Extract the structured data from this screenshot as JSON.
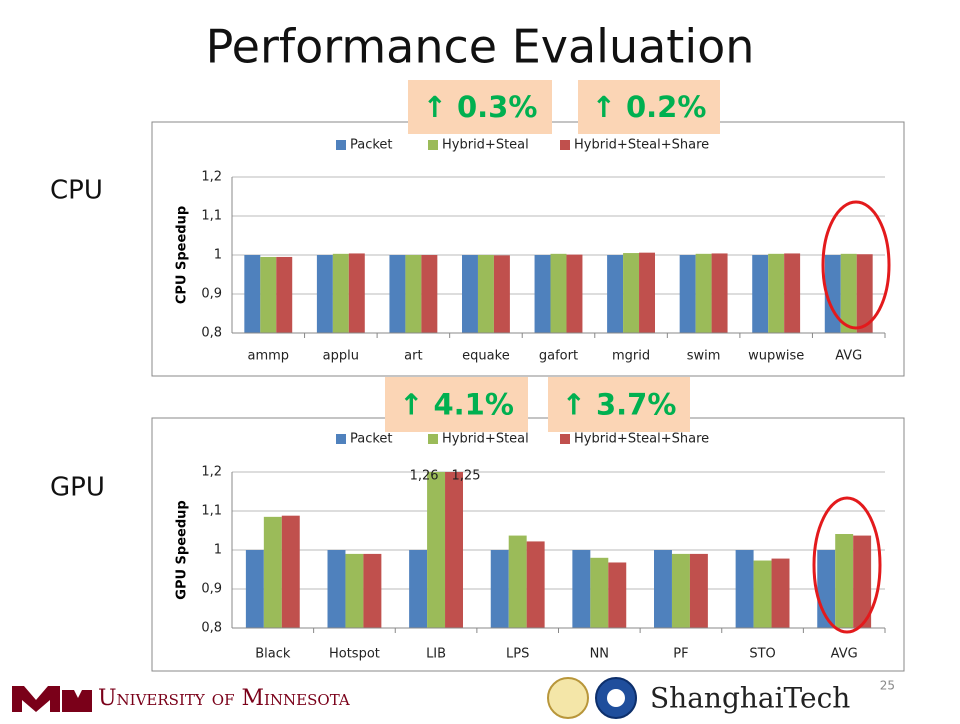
{
  "title": "Performance Evaluation",
  "footer": {
    "university": "University of Minnesota",
    "partner": "ShanghaiTech",
    "page": "25"
  },
  "chart_data": [
    {
      "type": "bar",
      "section": "CPU",
      "ylabel": "CPU Speedup",
      "annotations": [
        "↑ 0.3%",
        "↑ 0.2%"
      ],
      "categories": [
        "ammp",
        "applu",
        "art",
        "equake",
        "gafort",
        "mgrid",
        "swim",
        "wupwise",
        "AVG"
      ],
      "series": [
        {
          "name": "Packet",
          "color": "#4f81bd",
          "values": [
            1,
            1,
            1,
            1,
            1,
            1,
            1,
            1,
            1
          ]
        },
        {
          "name": "Hybrid+Steal",
          "color": "#9bbb59",
          "values": [
            0.995,
            1.003,
            1.0,
            1.0,
            1.003,
            1.005,
            1.003,
            1.003,
            1.003
          ]
        },
        {
          "name": "Hybrid+Steal+Share",
          "color": "#c0504d",
          "values": [
            0.995,
            1.004,
            1.0,
            0.999,
            1.001,
            1.006,
            1.004,
            1.004,
            1.002
          ]
        }
      ],
      "ylim": [
        0.8,
        1.2
      ],
      "yticks": [
        {
          "value": 0.8,
          "label": "0,8"
        },
        {
          "value": 0.9,
          "label": "0,9"
        },
        1,
        {
          "value": 1.1,
          "label": "1,1"
        },
        {
          "value": 1.2,
          "label": "1,2"
        }
      ],
      "grid": true,
      "legend": "top"
    },
    {
      "type": "bar",
      "section": "GPU",
      "ylabel": "GPU Speedup",
      "annotations": [
        "↑ 4.1%",
        "↑ 3.7%"
      ],
      "categories": [
        "Black",
        "Hotspot",
        "LIB",
        "LPS",
        "NN",
        "PF",
        "STO",
        "AVG"
      ],
      "series": [
        {
          "name": "Packet",
          "color": "#4f81bd",
          "values": [
            1,
            1,
            1,
            1,
            1,
            1,
            1,
            1
          ]
        },
        {
          "name": "Hybrid+Steal",
          "color": "#9bbb59",
          "values": [
            1.085,
            0.99,
            1.26,
            1.037,
            0.98,
            0.99,
            0.973,
            1.041
          ],
          "value_labels": [
            null,
            null,
            "1,26",
            null,
            null,
            null,
            null,
            null
          ]
        },
        {
          "name": "Hybrid+Steal+Share",
          "color": "#c0504d",
          "values": [
            1.088,
            0.99,
            1.25,
            1.022,
            0.968,
            0.99,
            0.978,
            1.037
          ],
          "value_labels": [
            null,
            null,
            "1,25",
            null,
            null,
            null,
            null,
            null
          ]
        }
      ],
      "ylim": [
        0.8,
        1.2
      ],
      "yticks": [
        {
          "value": 0.8,
          "label": "0,8"
        },
        {
          "value": 0.9,
          "label": "0,9"
        },
        1,
        {
          "value": 1.1,
          "label": "1,1"
        },
        {
          "value": 1.2,
          "label": "1,2"
        }
      ],
      "grid": true,
      "legend": "top"
    }
  ]
}
